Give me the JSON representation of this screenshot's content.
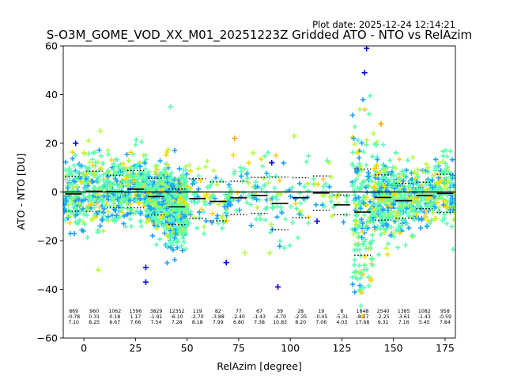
{
  "plot_date": "Plot date: 2025-12-24 12:14:21",
  "colors": {
    "dense": "#5cffb0",
    "mid_cyan": "#1aa3ff",
    "yellow": "#ffd700",
    "orange": "#ffa500",
    "green_yellow": "#b4ff3c",
    "blue": "#0000ff",
    "median_line": "#000000"
  },
  "chart_data": {
    "type": "scatter",
    "title": "S-O3M_GOME_VOD_XX_M01_20251223Z Gridded ATO - NTO vs RelAzim",
    "xlabel": "RelAzim [degree]",
    "ylabel": "ATO - NTO [DU]",
    "xlim": [
      -10,
      180
    ],
    "ylim": [
      -60,
      60
    ],
    "xticks": [
      0,
      25,
      50,
      75,
      100,
      125,
      150,
      175
    ],
    "yticks": [
      -60,
      -40,
      -20,
      0,
      20,
      40,
      60
    ],
    "reference_line_y": 0,
    "bins": [
      {
        "x0": -10,
        "x1": 0,
        "n": "869",
        "mean": "-0.78",
        "sd": "7.10"
      },
      {
        "x0": 0,
        "x1": 10,
        "n": "960",
        "mean": "0.31",
        "sd": "8.25"
      },
      {
        "x0": 10,
        "x1": 20,
        "n": "1062",
        "mean": "0.18",
        "sd": "6.67"
      },
      {
        "x0": 20,
        "x1": 30,
        "n": "1596",
        "mean": "1.17",
        "sd": "7.66"
      },
      {
        "x0": 30,
        "x1": 40,
        "n": "3829",
        "mean": "-1.91",
        "sd": "7.54"
      },
      {
        "x0": 40,
        "x1": 50,
        "n": "12352",
        "mean": "-6.10",
        "sd": "7.28"
      },
      {
        "x0": 50,
        "x1": 60,
        "n": "119",
        "mean": "-2.70",
        "sd": "8.18"
      },
      {
        "x0": 60,
        "x1": 70,
        "n": "82",
        "mean": "-3.88",
        "sd": "7.99"
      },
      {
        "x0": 70,
        "x1": 80,
        "n": "77",
        "mean": "-2.40",
        "sd": "6.80"
      },
      {
        "x0": 80,
        "x1": 90,
        "n": "67",
        "mean": "-1.43",
        "sd": "7.38"
      },
      {
        "x0": 90,
        "x1": 100,
        "n": "39",
        "mean": "-4.70",
        "sd": "10.83"
      },
      {
        "x0": 100,
        "x1": 110,
        "n": "28",
        "mean": "-2.35",
        "sd": "8.20"
      },
      {
        "x0": 110,
        "x1": 120,
        "n": "19",
        "mean": "-0.45",
        "sd": "7.06"
      },
      {
        "x0": 120,
        "x1": 130,
        "n": "8",
        "mean": "-5.31",
        "sd": "4.03"
      },
      {
        "x0": 130,
        "x1": 140,
        "n": "1848",
        "mean": "-8.27",
        "sd": "17.68"
      },
      {
        "x0": 140,
        "x1": 150,
        "n": "2540",
        "mean": "-2.25",
        "sd": "9.31"
      },
      {
        "x0": 150,
        "x1": 160,
        "n": "1385",
        "mean": "-3.61",
        "sd": "7.16"
      },
      {
        "x0": 160,
        "x1": 170,
        "n": "1082",
        "mean": "-1.43",
        "sd": "5.45"
      },
      {
        "x0": 170,
        "x1": 180,
        "n": "958",
        "mean": "-0.59",
        "sd": "7.84"
      }
    ],
    "outlier_points": [
      {
        "x": -4,
        "y": 20,
        "c": "blue"
      },
      {
        "x": 30,
        "y": -31,
        "c": "blue"
      },
      {
        "x": 30,
        "y": -37,
        "c": "blue"
      },
      {
        "x": 69,
        "y": -29,
        "c": "blue"
      },
      {
        "x": 73,
        "y": 22,
        "c": "orange"
      },
      {
        "x": 82,
        "y": 16,
        "c": "green_yellow"
      },
      {
        "x": 91,
        "y": 12,
        "c": "blue"
      },
      {
        "x": 93,
        "y": 15,
        "c": "yellow"
      },
      {
        "x": 94,
        "y": -39,
        "c": "blue"
      },
      {
        "x": 102,
        "y": 23,
        "c": "green_yellow"
      },
      {
        "x": 113,
        "y": -12,
        "c": "blue"
      },
      {
        "x": 137,
        "y": 59,
        "c": "blue"
      },
      {
        "x": 136,
        "y": 49,
        "c": "blue"
      },
      {
        "x": 144,
        "y": 28,
        "c": "orange"
      },
      {
        "x": 90,
        "y": -25,
        "c": "green_yellow"
      },
      {
        "x": 78,
        "y": -25,
        "c": "green_yellow"
      },
      {
        "x": 8,
        "y": 25,
        "c": "green_yellow"
      },
      {
        "x": 7,
        "y": -32,
        "c": "green_yellow"
      },
      {
        "x": 42,
        "y": 35,
        "c": "dense"
      },
      {
        "x": 97,
        "y": -23,
        "c": "dense"
      },
      {
        "x": 118,
        "y": 13,
        "c": "dense"
      }
    ]
  }
}
